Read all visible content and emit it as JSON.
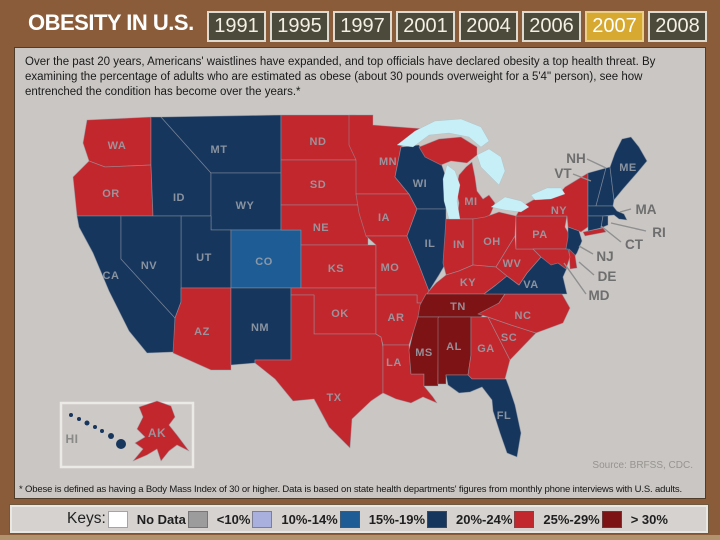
{
  "header": {
    "title": "OBESITY IN U.S.",
    "years": [
      "1991",
      "1995",
      "1997",
      "2001",
      "2004",
      "2006",
      "2007",
      "2008"
    ],
    "active_year": "2007"
  },
  "intro": "Over the past 20 years, Americans' waistlines have expanded, and top officials have declared obesity a top health threat. By examining the percentage of adults who are estimated as obese (about 30 pounds overweight for a 5'4\" person), see how entrenched the condition has become over the years.*",
  "map": {
    "source": "Source: BRFSS, CDC.",
    "states": [
      {
        "id": "WA",
        "category": "25_29"
      },
      {
        "id": "OR",
        "category": "25_29"
      },
      {
        "id": "CA",
        "category": "20_24"
      },
      {
        "id": "NV",
        "category": "20_24"
      },
      {
        "id": "ID",
        "category": "20_24"
      },
      {
        "id": "MT",
        "category": "20_24"
      },
      {
        "id": "WY",
        "category": "20_24"
      },
      {
        "id": "UT",
        "category": "20_24"
      },
      {
        "id": "CO",
        "category": "15_19"
      },
      {
        "id": "AZ",
        "category": "25_29"
      },
      {
        "id": "NM",
        "category": "20_24"
      },
      {
        "id": "ND",
        "category": "25_29"
      },
      {
        "id": "SD",
        "category": "25_29"
      },
      {
        "id": "NE",
        "category": "25_29"
      },
      {
        "id": "KS",
        "category": "25_29"
      },
      {
        "id": "OK",
        "category": "25_29"
      },
      {
        "id": "TX",
        "category": "25_29"
      },
      {
        "id": "MN",
        "category": "25_29"
      },
      {
        "id": "IA",
        "category": "25_29"
      },
      {
        "id": "MO",
        "category": "25_29"
      },
      {
        "id": "AR",
        "category": "25_29"
      },
      {
        "id": "LA",
        "category": "25_29"
      },
      {
        "id": "WI",
        "category": "20_24"
      },
      {
        "id": "IL",
        "category": "20_24"
      },
      {
        "id": "MI",
        "category": "25_29"
      },
      {
        "id": "IN",
        "category": "25_29"
      },
      {
        "id": "OH",
        "category": "25_29"
      },
      {
        "id": "KY",
        "category": "25_29"
      },
      {
        "id": "TN",
        "category": "gt30"
      },
      {
        "id": "MS",
        "category": "gt30"
      },
      {
        "id": "AL",
        "category": "gt30"
      },
      {
        "id": "GA",
        "category": "25_29"
      },
      {
        "id": "FL",
        "category": "20_24"
      },
      {
        "id": "SC",
        "category": "25_29"
      },
      {
        "id": "NC",
        "category": "25_29"
      },
      {
        "id": "VA",
        "category": "20_24"
      },
      {
        "id": "WV",
        "category": "25_29"
      },
      {
        "id": "PA",
        "category": "25_29"
      },
      {
        "id": "NY",
        "category": "25_29"
      },
      {
        "id": "NJ",
        "category": "20_24"
      },
      {
        "id": "DE",
        "category": "25_29"
      },
      {
        "id": "MD",
        "category": "25_29"
      },
      {
        "id": "VT",
        "category": "20_24"
      },
      {
        "id": "NH",
        "category": "20_24"
      },
      {
        "id": "ME",
        "category": "20_24"
      },
      {
        "id": "MA",
        "category": "20_24"
      },
      {
        "id": "RI",
        "category": "20_24"
      },
      {
        "id": "CT",
        "category": "20_24"
      },
      {
        "id": "AK",
        "category": "25_29"
      },
      {
        "id": "HI",
        "category": "20_24"
      }
    ]
  },
  "footnote": "* Obese is defined as having a Body Mass Index of 30 or higher. Data is based on state health departments' figures from monthly phone interviews with U.S. adults.",
  "legend": {
    "label": "Keys:",
    "items": [
      {
        "label": "No Data",
        "category": "no_data",
        "color": "#FFFFFF"
      },
      {
        "label": "<10%",
        "category": "lt10",
        "color": "#9C9C9C"
      },
      {
        "label": "10%-14%",
        "category": "10_14",
        "color": "#A9B0DE"
      },
      {
        "label": "15%-19%",
        "category": "15_19",
        "color": "#1E5C95"
      },
      {
        "label": "20%-24%",
        "category": "20_24",
        "color": "#17365D"
      },
      {
        "label": "25%-29%",
        "category": "25_29",
        "color": "#C1272D"
      },
      {
        "label": "> 30%",
        "category": "gt30",
        "color": "#7E1315"
      }
    ]
  }
}
